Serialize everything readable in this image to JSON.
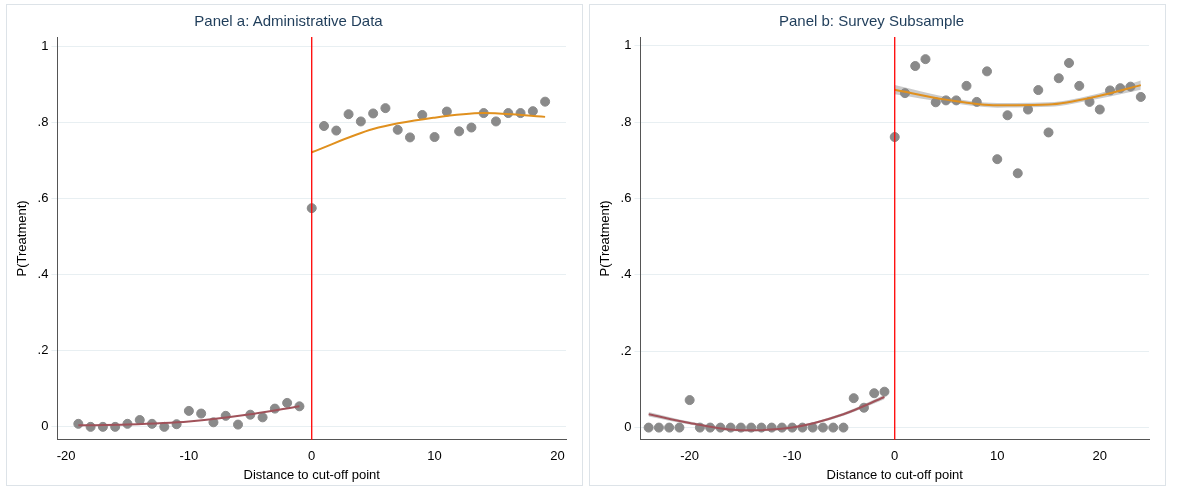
{
  "chart_data": [
    {
      "type": "scatter",
      "title": "Panel a: Administrative Data",
      "xlabel": "Distance to cut-off point",
      "ylabel": "P(Treatment)",
      "xlim": [
        -20.7,
        20.7
      ],
      "xticks": [
        -20,
        -10,
        0,
        10,
        20
      ],
      "ylim": [
        -0.034,
        1.025
      ],
      "yticks": [
        {
          "value": 0,
          "label": "0"
        },
        {
          "value": 0.2,
          "label": ".2"
        },
        {
          "value": 0.4,
          "label": ".4"
        },
        {
          "value": 0.6,
          "label": ".6"
        },
        {
          "value": 0.8,
          "label": ".8"
        },
        {
          "value": 1,
          "label": "1"
        }
      ],
      "grid": "y",
      "legend": false,
      "ref_lines": [
        {
          "axis": "x",
          "value": 0,
          "color": "#ff0000",
          "line_style": "solid"
        }
      ],
      "series": [
        {
          "type": "scatter",
          "marker": "circle",
          "color": "#8a8a8a",
          "x": [
            -19,
            -18,
            -17,
            -16,
            -15,
            -14,
            -13,
            -12,
            -11,
            -10,
            -9,
            -8,
            -7,
            -6,
            -5,
            -4,
            -3,
            -2,
            -1,
            0,
            1,
            2,
            3,
            4,
            5,
            6,
            7,
            8,
            9,
            10,
            11,
            12,
            13,
            14,
            15,
            16,
            17,
            18,
            19
          ],
          "values": [
            0.008,
            0,
            0,
            0,
            0.008,
            0.018,
            0.008,
            0,
            0.007,
            0.042,
            0.035,
            0.012,
            0.029,
            0.006,
            0.032,
            0.025,
            0.048,
            0.063,
            0.054,
            0.575,
            0.791,
            0.779,
            0.822,
            0.803,
            0.824,
            0.838,
            0.781,
            0.761,
            0.82,
            0.762,
            0.829,
            0.777,
            0.787,
            0.825,
            0.803,
            0.825,
            0.825,
            0.83,
            0.855
          ]
        },
        {
          "type": "line",
          "marker": "none",
          "color": "#a0525a",
          "x": [
            -19,
            -15,
            -10,
            -5,
            -1
          ],
          "values": [
            0.004,
            0.006,
            0.014,
            0.033,
            0.054
          ]
        },
        {
          "type": "line",
          "marker": "none",
          "color": "#e0901e",
          "x": [
            0,
            5,
            10,
            14,
            19
          ],
          "values": [
            0.722,
            0.783,
            0.813,
            0.825,
            0.815
          ]
        }
      ]
    },
    {
      "type": "scatter",
      "title": "Panel b: Survey Subsample",
      "xlabel": "Distance to cut-off point",
      "ylabel": "P(Treatment)",
      "xlim": [
        -24.8,
        24.8
      ],
      "xticks": [
        -20,
        -10,
        0,
        10,
        20
      ],
      "ylim": [
        -0.032,
        1.023
      ],
      "yticks": [
        {
          "value": 0,
          "label": "0"
        },
        {
          "value": 0.2,
          "label": ".2"
        },
        {
          "value": 0.4,
          "label": ".4"
        },
        {
          "value": 0.6,
          "label": ".6"
        },
        {
          "value": 0.8,
          "label": ".8"
        },
        {
          "value": 1,
          "label": "1"
        }
      ],
      "grid": "y",
      "legend": false,
      "ref_lines": [
        {
          "axis": "x",
          "value": 0,
          "color": "#ff0000",
          "line_style": "solid"
        }
      ],
      "series": [
        {
          "type": "scatter",
          "marker": "circle",
          "color": "#8a8a8a",
          "x": [
            -24,
            -23,
            -22,
            -21,
            -20,
            -19,
            -18,
            -17,
            -16,
            -15,
            -14,
            -13,
            -12,
            -11,
            -10,
            -9,
            -8,
            -7,
            -6,
            -5,
            -4,
            -3,
            -2,
            -1,
            0,
            1,
            2,
            3,
            4,
            5,
            6,
            7,
            8,
            9,
            10,
            11,
            12,
            13,
            14,
            15,
            16,
            17,
            18,
            19,
            20,
            21,
            22,
            23,
            24
          ],
          "values": [
            0,
            0,
            0,
            0,
            0.072,
            0,
            0,
            0,
            0,
            0,
            0,
            0,
            0,
            0,
            0,
            0,
            0,
            0,
            0,
            0,
            0.077,
            0.052,
            0.09,
            0.094,
            0.761,
            0.876,
            0.947,
            0.965,
            0.852,
            0.857,
            0.857,
            0.895,
            0.853,
            0.933,
            0.703,
            0.818,
            0.666,
            0.833,
            0.884,
            0.773,
            0.915,
            0.955,
            0.895,
            0.853,
            0.833,
            0.883,
            0.889,
            0.893,
            0.866
          ]
        },
        {
          "type": "line",
          "marker": "none",
          "color": "#a0525a",
          "x": [
            -24,
            -20,
            -15,
            -10,
            -5,
            -1
          ],
          "values": [
            0.035,
            0.012,
            -0.007,
            0,
            0.035,
            0.08
          ],
          "lower": [
            0.029,
            0.008,
            -0.01,
            -0.003,
            0.031,
            0.074
          ],
          "upper": [
            0.041,
            0.016,
            -0.004,
            0.003,
            0.039,
            0.086
          ]
        },
        {
          "type": "line",
          "marker": "none",
          "color": "#e0901e",
          "x": [
            0,
            5,
            10,
            15,
            20,
            24
          ],
          "values": [
            0.885,
            0.859,
            0.844,
            0.846,
            0.869,
            0.897
          ],
          "lower": [
            0.873,
            0.852,
            0.838,
            0.84,
            0.862,
            0.885
          ],
          "upper": [
            0.897,
            0.866,
            0.85,
            0.852,
            0.876,
            0.909
          ]
        }
      ]
    }
  ]
}
